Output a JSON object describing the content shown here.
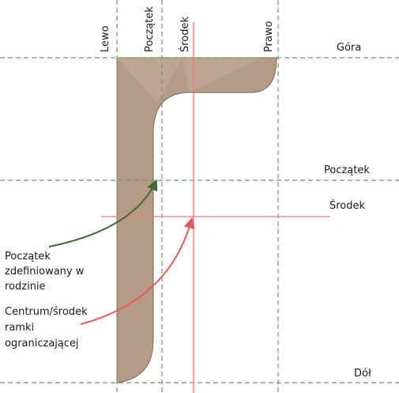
{
  "vertical_labels": {
    "left": "Lewo",
    "start": "Początek",
    "center": "Środek",
    "right": "Prawo"
  },
  "horizontal_labels": {
    "top": "Góra",
    "start": "Początek",
    "center": "Środek",
    "bottom": "Dół"
  },
  "annotations": {
    "family_origin": [
      "Początek",
      "zdefiniowany w",
      "rodzinie"
    ],
    "bbox_center": [
      "Centrum/środek",
      "ramki",
      "ograniczającej"
    ]
  },
  "colors": {
    "reference_dashed": "#6a9a6a",
    "center_lines": "#f07878",
    "shape_fill": "#b59a85",
    "shape_stroke": "#7a6a5a",
    "arrow_green": "#3d6b35",
    "arrow_red": "#e85a5a"
  }
}
